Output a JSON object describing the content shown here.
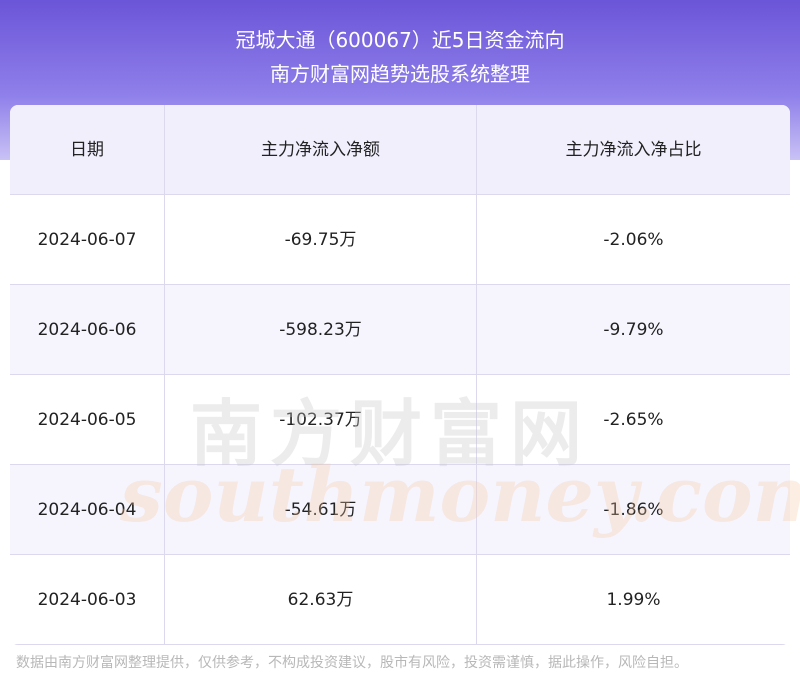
{
  "header": {
    "title": "冠城大通（600067）近5日资金流向",
    "subtitle": "南方财富网趋势选股系统整理"
  },
  "table": {
    "columns": [
      "日期",
      "主力净流入净额",
      "主力净流入净占比"
    ],
    "rows": [
      [
        "2024-06-07",
        "-69.75万",
        "-2.06%"
      ],
      [
        "2024-06-06",
        "-598.23万",
        "-9.79%"
      ],
      [
        "2024-06-05",
        "-102.37万",
        "-2.65%"
      ],
      [
        "2024-06-04",
        "-54.61万",
        "-1.86%"
      ],
      [
        "2024-06-03",
        "62.63万",
        "1.99%"
      ]
    ]
  },
  "watermark": {
    "name": "南方财富网",
    "site": "southmoney.com"
  },
  "footer": "数据由南方财富网整理提供，仅供参考，不构成投资建议，股市有风险，投资需谨慎，据此操作，风险自担。"
}
